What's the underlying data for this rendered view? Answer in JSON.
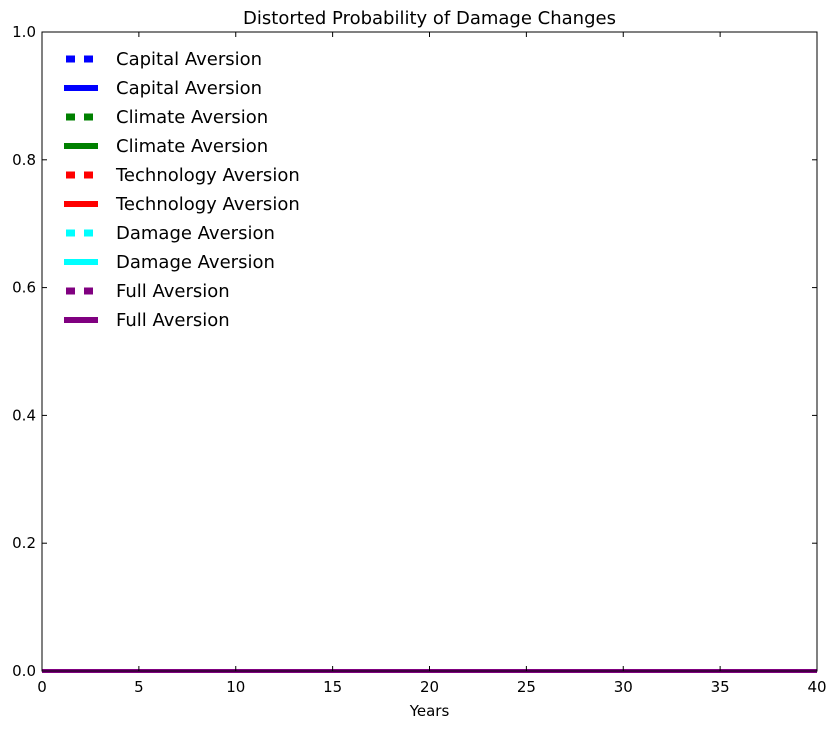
{
  "chart_data": {
    "type": "line",
    "title": "Distorted Probability of Damage Changes",
    "xlabel": "Years",
    "ylabel": "",
    "xlim": [
      0,
      40
    ],
    "ylim": [
      0.0,
      1.0
    ],
    "x_ticks": [
      0,
      5,
      10,
      15,
      20,
      25,
      30,
      35,
      40
    ],
    "x_tick_labels": [
      "0",
      "5",
      "10",
      "15",
      "20",
      "25",
      "30",
      "35",
      "40"
    ],
    "y_ticks": [
      0.0,
      0.2,
      0.4,
      0.6,
      0.8,
      1.0
    ],
    "y_tick_labels": [
      "0.0",
      "0.2",
      "0.4",
      "0.6",
      "0.8",
      "1.0"
    ],
    "grid": false,
    "legend_position": "top-left",
    "x": [
      0,
      40
    ],
    "series": [
      {
        "name": "Capital Aversion",
        "style": "dotted",
        "color": "#0000ff",
        "values": [
          0,
          0
        ]
      },
      {
        "name": "Capital Aversion",
        "style": "solid",
        "color": "#0000ff",
        "values": [
          0,
          0
        ]
      },
      {
        "name": "Climate Aversion",
        "style": "dotted",
        "color": "#008000",
        "values": [
          0,
          0
        ]
      },
      {
        "name": "Climate Aversion",
        "style": "solid",
        "color": "#008000",
        "values": [
          0,
          0
        ]
      },
      {
        "name": "Technology Aversion",
        "style": "dotted",
        "color": "#ff0000",
        "values": [
          0,
          0
        ]
      },
      {
        "name": "Technology Aversion",
        "style": "solid",
        "color": "#ff0000",
        "values": [
          0,
          0
        ]
      },
      {
        "name": "Damage Aversion",
        "style": "dotted",
        "color": "#00ffff",
        "values": [
          0,
          0
        ]
      },
      {
        "name": "Damage Aversion",
        "style": "solid",
        "color": "#00ffff",
        "values": [
          0,
          0
        ]
      },
      {
        "name": "Full Aversion",
        "style": "dotted",
        "color": "#800080",
        "values": [
          0,
          0
        ]
      },
      {
        "name": "Full Aversion",
        "style": "solid",
        "color": "#800080",
        "values": [
          0,
          0
        ]
      }
    ]
  }
}
